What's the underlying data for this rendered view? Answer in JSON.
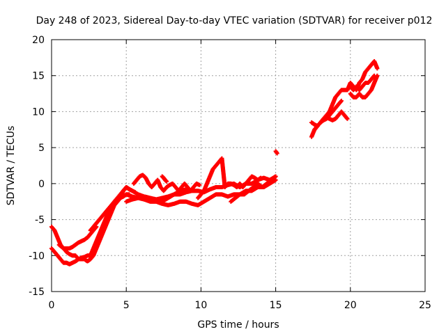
{
  "chart_data": {
    "type": "scatter",
    "title": "Day 248 of 2023, Sidereal Day-to-day VTEC variation (SDTVAR) for receiver p012",
    "xlabel": "GPS time / hours",
    "ylabel": "SDTVAR / TECUs",
    "xlim": [
      0,
      25
    ],
    "ylim": [
      -15,
      20
    ],
    "xticks": [
      "0",
      "5",
      "10",
      "15",
      "20",
      "25"
    ],
    "yticks": [
      "-15",
      "-10",
      "-5",
      "0",
      "5",
      "10",
      "15",
      "20"
    ],
    "grid": true,
    "legend": "none",
    "marker_color": "#ff0000",
    "series": [
      {
        "x": [
          0.0,
          0.2,
          0.4,
          0.6,
          0.8,
          1.0,
          1.2,
          1.4,
          1.6,
          1.8,
          2.0,
          2.2,
          2.4,
          2.6,
          2.8,
          3.0
        ],
        "y": [
          -6.0,
          -6.5,
          -7.5,
          -8.5,
          -9.0,
          -9.0,
          -9.0,
          -8.8,
          -8.5,
          -8.2,
          -8.0,
          -7.8,
          -7.5,
          -7.0,
          -6.5,
          -6.0
        ]
      },
      {
        "x": [
          0.0,
          0.2,
          0.4,
          0.6,
          0.8,
          1.0,
          1.2,
          1.4,
          1.6,
          1.8,
          2.0,
          2.2,
          2.4,
          2.6,
          2.8,
          3.0,
          3.2,
          3.4,
          3.6,
          3.8,
          4.0,
          4.2,
          4.4,
          4.6,
          4.8,
          5.0
        ],
        "y": [
          -9.0,
          -9.5,
          -10.0,
          -10.5,
          -11.0,
          -11.0,
          -11.2,
          -11.0,
          -10.8,
          -10.5,
          -10.3,
          -10.2,
          -10.0,
          -10.0,
          -9.0,
          -8.0,
          -7.0,
          -6.0,
          -5.0,
          -4.0,
          -3.5,
          -3.0,
          -2.5,
          -2.0,
          -1.0,
          -0.5
        ]
      },
      {
        "x": [
          0.5,
          0.8,
          1.0,
          1.2,
          1.4,
          1.6,
          1.8,
          2.0,
          2.2,
          2.4,
          2.6,
          2.8,
          3.0,
          3.2,
          3.4,
          3.6,
          3.8,
          4.0,
          4.2,
          4.4,
          4.6,
          4.8,
          5.0,
          5.2
        ],
        "y": [
          -8.5,
          -9.0,
          -9.5,
          -9.8,
          -10.0,
          -10.0,
          -10.5,
          -10.5,
          -10.5,
          -10.8,
          -10.5,
          -10.0,
          -9.0,
          -8.0,
          -7.0,
          -6.0,
          -5.0,
          -4.0,
          -3.0,
          -2.5,
          -2.0,
          -1.8,
          -1.5,
          -1.5
        ]
      },
      {
        "x": [
          2.6,
          2.8,
          3.0,
          3.2,
          3.4,
          3.6,
          3.8,
          4.0,
          4.2,
          4.4,
          4.6,
          4.8,
          5.0,
          5.2,
          5.4,
          5.6
        ],
        "y": [
          -6.5,
          -6.0,
          -5.5,
          -5.0,
          -4.5,
          -4.0,
          -3.5,
          -3.0,
          -2.5,
          -2.0,
          -1.5,
          -1.0,
          -0.5,
          -0.8,
          -1.0,
          -1.2
        ]
      },
      {
        "x": [
          5.0,
          5.4,
          5.8,
          6.2,
          6.6,
          7.0,
          7.4,
          7.8,
          8.2,
          8.6,
          9.0,
          9.4,
          9.8,
          10.2,
          10.6,
          11.0,
          11.4,
          11.8,
          12.2,
          12.6,
          13.0,
          13.4,
          13.8,
          14.2,
          14.6,
          15.0
        ],
        "y": [
          -1.5,
          -1.8,
          -2.0,
          -2.2,
          -2.5,
          -2.5,
          -2.8,
          -3.0,
          -2.8,
          -2.5,
          -2.5,
          -2.8,
          -3.0,
          -2.5,
          -2.0,
          -1.5,
          -1.5,
          -1.8,
          -1.5,
          -1.5,
          -1.0,
          -1.0,
          -0.5,
          -0.5,
          0.0,
          0.5
        ]
      },
      {
        "x": [
          5.0,
          5.4,
          5.8,
          6.2,
          6.6,
          7.0,
          7.4,
          7.8,
          8.2,
          8.6,
          9.0,
          9.4,
          9.8,
          10.2,
          10.6,
          11.0,
          11.4,
          11.8,
          12.2,
          12.6,
          13.0,
          13.4,
          13.8,
          14.2,
          14.6,
          15.0
        ],
        "y": [
          -2.5,
          -2.2,
          -2.0,
          -1.8,
          -2.0,
          -2.2,
          -2.5,
          -2.0,
          -1.5,
          -1.5,
          -1.2,
          -1.0,
          -1.0,
          -1.2,
          -0.8,
          -0.5,
          -0.5,
          -0.2,
          0.0,
          -0.5,
          0.0,
          0.0,
          0.5,
          0.8,
          0.5,
          1.0
        ]
      },
      {
        "x": [
          5.5,
          5.7,
          5.9,
          6.1,
          6.3,
          6.5,
          6.7,
          6.9,
          7.1,
          7.3,
          7.5,
          7.7,
          7.9,
          8.1,
          8.3,
          8.5,
          8.7,
          8.9,
          9.1,
          9.3,
          9.5,
          9.7,
          9.9
        ],
        "y": [
          0.0,
          0.5,
          1.0,
          1.2,
          0.8,
          0.0,
          -0.5,
          0.0,
          0.5,
          -0.5,
          -1.0,
          -0.5,
          -0.2,
          0.0,
          -0.5,
          -1.0,
          -0.5,
          0.0,
          -0.5,
          -1.0,
          -0.5,
          0.0,
          -0.2
        ]
      },
      {
        "x": [
          5.0,
          5.4,
          5.8,
          6.2,
          6.6,
          7.0,
          7.4,
          7.8,
          8.2,
          8.6,
          9.0
        ],
        "y": [
          -0.5,
          -1.0,
          -1.5,
          -1.8,
          -2.0,
          -2.2,
          -2.0,
          -1.8,
          -1.5,
          -1.0,
          -0.8
        ]
      },
      {
        "x": [
          7.4,
          7.5,
          7.6,
          7.7
        ],
        "y": [
          1.0,
          0.8,
          0.5,
          0.3
        ]
      },
      {
        "x": [
          9.8,
          10.0,
          10.2,
          10.4,
          10.6,
          10.8,
          11.0,
          11.2,
          11.4,
          11.6,
          11.8,
          12.0,
          12.2,
          12.4,
          12.6,
          12.8,
          13.0,
          13.2,
          13.4,
          13.6,
          13.8,
          14.0
        ],
        "y": [
          -2.0,
          -1.5,
          -1.0,
          0.0,
          1.0,
          2.0,
          2.5,
          3.0,
          3.5,
          -0.5,
          0.0,
          0.0,
          -0.2,
          -0.5,
          0.0,
          -0.5,
          0.0,
          0.5,
          1.0,
          0.8,
          0.5,
          0.8
        ]
      },
      {
        "x": [
          12.0,
          12.3,
          12.6,
          12.9,
          13.2,
          13.5,
          13.8,
          14.1,
          14.4,
          14.7,
          15.0
        ],
        "y": [
          -2.5,
          -2.0,
          -1.5,
          -1.5,
          -1.0,
          -0.5,
          0.0,
          -0.5,
          0.0,
          0.5,
          1.0
        ]
      },
      {
        "x": [
          15.0,
          15.1
        ],
        "y": [
          4.5,
          4.2
        ]
      },
      {
        "x": [
          17.4,
          17.6,
          17.8,
          18.0,
          18.2,
          18.4,
          18.6,
          18.8,
          19.0,
          19.2,
          19.4,
          19.6,
          19.8,
          20.0,
          20.2,
          20.4,
          20.6,
          20.8,
          21.0,
          21.2,
          21.4,
          21.6,
          21.8
        ],
        "y": [
          6.5,
          7.5,
          8.0,
          8.5,
          9.0,
          9.5,
          10.0,
          11.0,
          12.0,
          12.5,
          13.0,
          13.0,
          13.0,
          14.0,
          13.5,
          13.0,
          14.0,
          14.5,
          15.5,
          16.0,
          16.5,
          17.0,
          16.0
        ]
      },
      {
        "x": [
          17.4,
          17.6,
          17.8,
          18.0,
          18.2,
          18.4,
          18.6,
          18.8,
          19.0,
          19.2,
          19.4,
          19.6,
          19.8
        ],
        "y": [
          8.5,
          8.2,
          8.0,
          8.5,
          9.0,
          9.2,
          9.0,
          8.8,
          9.0,
          9.5,
          10.0,
          9.5,
          9.0
        ]
      },
      {
        "x": [
          17.6,
          17.8,
          18.0,
          18.2,
          18.4,
          18.6,
          18.8,
          19.0,
          19.2,
          19.4
        ],
        "y": [
          7.5,
          8.0,
          8.5,
          8.8,
          9.0,
          9.5,
          10.0,
          10.5,
          11.0,
          11.5
        ]
      },
      {
        "x": [
          20.0,
          20.2,
          20.4,
          20.6,
          20.8,
          21.0,
          21.2,
          21.4,
          21.6,
          21.8
        ],
        "y": [
          12.5,
          12.0,
          12.0,
          12.5,
          12.0,
          12.0,
          12.5,
          13.0,
          14.0,
          15.0
        ]
      },
      {
        "x": [
          20.0,
          20.2,
          20.4,
          20.6,
          20.8,
          21.0,
          21.2,
          21.4,
          21.6
        ],
        "y": [
          13.5,
          13.0,
          13.5,
          13.0,
          13.5,
          14.0,
          14.0,
          14.5,
          15.0
        ]
      }
    ]
  }
}
